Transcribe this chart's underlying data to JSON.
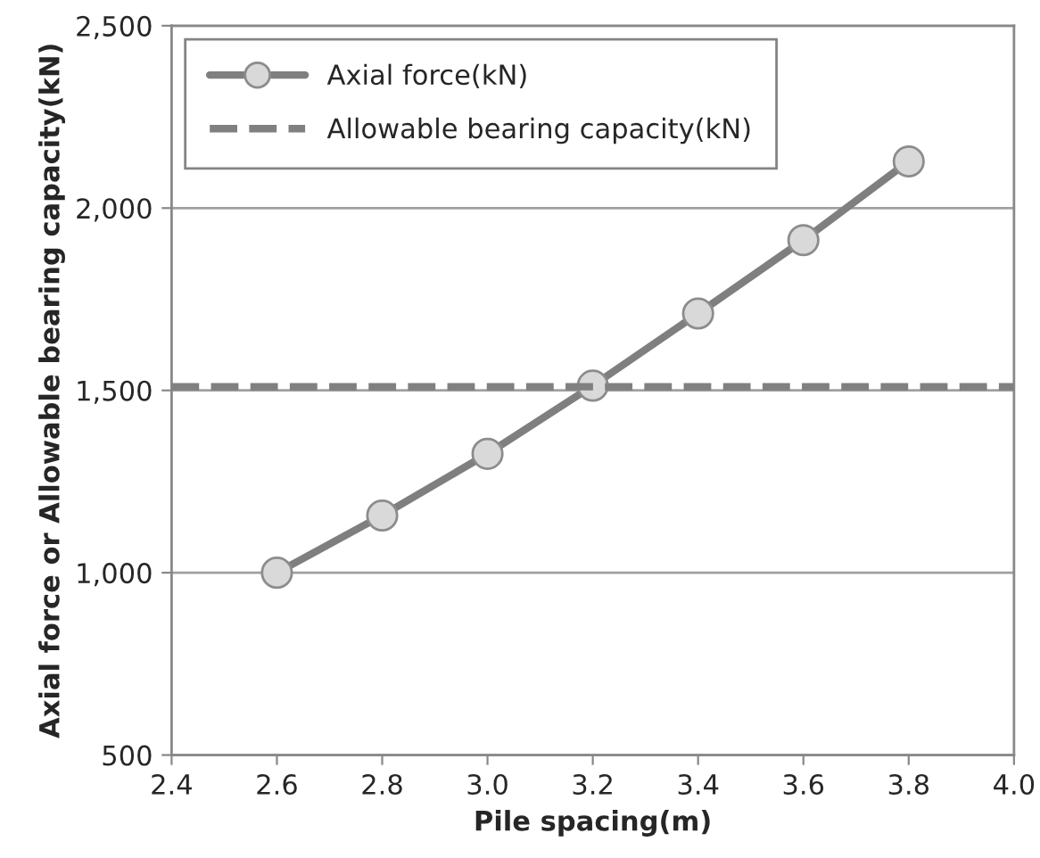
{
  "chart_data": {
    "type": "line",
    "xlabel": "Pile spacing(m)",
    "ylabel": "Axial force or Allowable bearing capacity(kN)",
    "series": [
      {
        "name": "Axial force(kN)",
        "color": "#7f7f7f",
        "x": [
          2.6,
          2.8,
          3.0,
          3.2,
          3.4,
          3.6,
          3.8
        ],
        "values": [
          1000,
          1157,
          1326,
          1513,
          1711,
          1912,
          2128
        ],
        "marker": "circle",
        "line_style": "solid"
      },
      {
        "name": "Allowable bearing capacity(kN)",
        "color": "#808080",
        "x": [
          2.4,
          4.0
        ],
        "values": [
          1510,
          1510
        ],
        "marker": "none",
        "line_style": "dashed"
      }
    ],
    "xlim": [
      2.4,
      4.0
    ],
    "xticks": [
      {
        "value": 2.4,
        "label": "2.4"
      },
      {
        "value": 2.6,
        "label": "2.6"
      },
      {
        "value": 2.8,
        "label": "2.8"
      },
      {
        "value": 3.0,
        "label": "3.0"
      },
      {
        "value": 3.2,
        "label": "3.2"
      },
      {
        "value": 3.4,
        "label": "3.4"
      },
      {
        "value": 3.6,
        "label": "3.6"
      },
      {
        "value": 3.8,
        "label": "3.8"
      },
      {
        "value": 4.0,
        "label": "4.0"
      }
    ],
    "ylim": [
      500,
      2500
    ],
    "yticks": [
      {
        "value": 500,
        "label": "500"
      },
      {
        "value": 1000,
        "label": "1,000"
      },
      {
        "value": 1500,
        "label": "1,500"
      },
      {
        "value": 2000,
        "label": "2,000"
      },
      {
        "value": 2500,
        "label": "2,500"
      }
    ],
    "grid": "y",
    "legend": "top left"
  }
}
